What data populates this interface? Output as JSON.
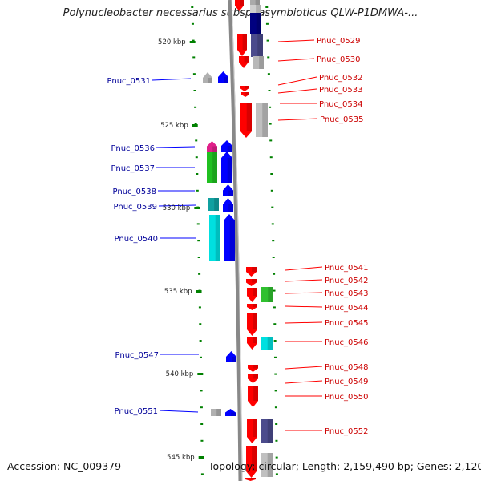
{
  "title": "Polynucleobacter necessarius subsp. asymbioticus QLW-P1DMWA-...",
  "footer": {
    "accession": "Accession: NC_009379",
    "topology": "Topology: circular; Length: 2,159,490 bp; Genes: 2,120"
  },
  "colors": {
    "forward": "#ff0000",
    "reverse": "#0000ff",
    "forward_label": "#cc0000",
    "reverse_label": "#000099",
    "backbone": "#888888",
    "tick": "#008000"
  },
  "scale": {
    "labels": [
      "520 kbp",
      "525 kbp",
      "530 kbp",
      "535 kbp",
      "540 kbp",
      "545 kbp"
    ],
    "start_kbp": 518,
    "end_kbp": 545.5
  },
  "genes": {
    "forward": [
      "Pnuc_0529",
      "Pnuc_0530",
      "Pnuc_0532",
      "Pnuc_0533",
      "Pnuc_0534",
      "Pnuc_0535",
      "Pnuc_0541",
      "Pnuc_0542",
      "Pnuc_0543",
      "Pnuc_0544",
      "Pnuc_0545",
      "Pnuc_0546",
      "Pnuc_0548",
      "Pnuc_0549",
      "Pnuc_0550",
      "Pnuc_0552"
    ],
    "reverse": [
      "Pnuc_0531",
      "Pnuc_0536",
      "Pnuc_0537",
      "Pnuc_0538",
      "Pnuc_0539",
      "Pnuc_0540",
      "Pnuc_0547",
      "Pnuc_0551"
    ]
  }
}
